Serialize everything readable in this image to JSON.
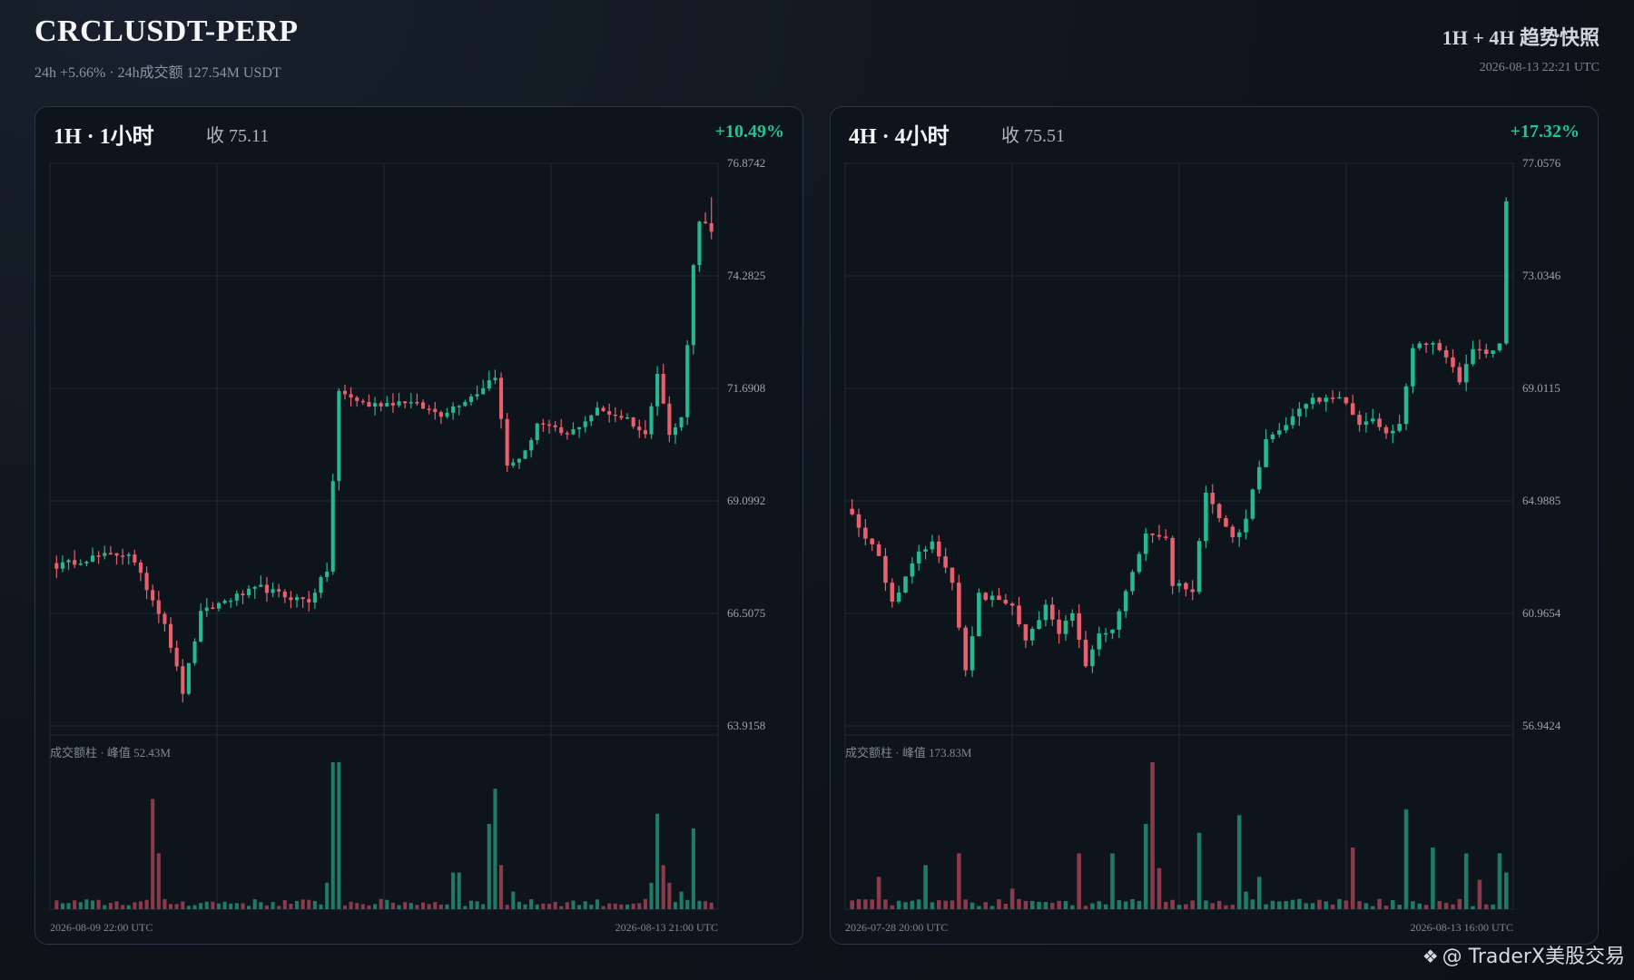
{
  "header": {
    "title": "CRCLUSDT-PERP",
    "subtitle": "24h +5.66% · 24h成交额 127.54M USDT",
    "right_title": "1H + 4H 趋势快照",
    "timestamp": "2026-08-13 22:21 UTC"
  },
  "watermark": {
    "icon": "diamond-logo-icon",
    "text": "@ TraderX美股交易"
  },
  "colors": {
    "up": "#26b88f",
    "down": "#e8606e",
    "up_vol": "#1f7a67",
    "down_vol": "#8a3a4a",
    "grid": "#1f2a35"
  },
  "chart_data": [
    {
      "type": "candlestick",
      "label": "1H · 1小时",
      "close_text": "收 75.11",
      "change": "+10.49%",
      "ylim": [
        63.9158,
        76.8742
      ],
      "y_ticks": [
        "76.8742",
        "74.2825",
        "71.6908",
        "69.0992",
        "66.5075",
        "63.9158"
      ],
      "x_start": "2026-08-09 22:00 UTC",
      "x_end": "2026-08-13 21:00 UTC",
      "volume_caption": "成交额柱 · 峰值 52.43M",
      "anchors": [
        [
          0,
          67.6
        ],
        [
          6,
          67.8
        ],
        [
          12,
          67.9
        ],
        [
          18,
          66.3
        ],
        [
          21,
          64.7
        ],
        [
          24,
          66.5
        ],
        [
          28,
          66.8
        ],
        [
          34,
          67.1
        ],
        [
          38,
          66.9
        ],
        [
          42,
          66.8
        ],
        [
          45,
          67.5
        ],
        [
          47,
          71.6
        ],
        [
          52,
          71.3
        ],
        [
          58,
          71.4
        ],
        [
          64,
          71.1
        ],
        [
          70,
          71.6
        ],
        [
          73,
          72.0
        ],
        [
          75,
          69.9
        ],
        [
          78,
          70.2
        ],
        [
          80,
          70.9
        ],
        [
          85,
          70.6
        ],
        [
          90,
          71.2
        ],
        [
          95,
          71.0
        ],
        [
          98,
          70.6
        ],
        [
          100,
          72.1
        ],
        [
          102,
          70.6
        ],
        [
          104,
          71.0
        ],
        [
          106,
          74.5
        ],
        [
          107,
          75.6
        ],
        [
          109,
          75.3
        ]
      ],
      "vol_spikes": [
        [
          16,
          0.75
        ],
        [
          17,
          0.38
        ],
        [
          45,
          0.18
        ],
        [
          46,
          1.0
        ],
        [
          47,
          1.0
        ],
        [
          66,
          0.25
        ],
        [
          67,
          0.25
        ],
        [
          72,
          0.58
        ],
        [
          73,
          0.82
        ],
        [
          74,
          0.3
        ],
        [
          76,
          0.12
        ],
        [
          99,
          0.18
        ],
        [
          100,
          0.65
        ],
        [
          101,
          0.3
        ],
        [
          102,
          0.18
        ],
        [
          104,
          0.12
        ],
        [
          106,
          0.55
        ]
      ]
    },
    {
      "type": "candlestick",
      "label": "4H · 4小时",
      "close_text": "收 75.51",
      "change": "+17.32%",
      "ylim": [
        56.9424,
        77.0576
      ],
      "y_ticks": [
        "77.0576",
        "73.0346",
        "69.0115",
        "64.9885",
        "60.9654",
        "56.9424"
      ],
      "x_start": "2026-07-28 20:00 UTC",
      "x_end": "2026-08-13 16:00 UTC",
      "volume_caption": "成交额柱 · 峰值 173.83M",
      "anchors": [
        [
          0,
          64.5
        ],
        [
          4,
          63.0
        ],
        [
          6,
          61.3
        ],
        [
          9,
          62.8
        ],
        [
          12,
          63.6
        ],
        [
          15,
          62.1
        ],
        [
          17,
          58.9
        ],
        [
          19,
          61.6
        ],
        [
          24,
          61.3
        ],
        [
          26,
          60.0
        ],
        [
          29,
          61.2
        ],
        [
          31,
          60.2
        ],
        [
          33,
          61.0
        ],
        [
          35,
          59.0
        ],
        [
          37,
          60.2
        ],
        [
          39,
          60.3
        ],
        [
          41,
          61.8
        ],
        [
          44,
          63.8
        ],
        [
          47,
          63.6
        ],
        [
          48,
          62.0
        ],
        [
          51,
          61.8
        ],
        [
          53,
          65.3
        ],
        [
          57,
          63.6
        ],
        [
          59,
          64.3
        ],
        [
          62,
          67.3
        ],
        [
          64,
          67.6
        ],
        [
          69,
          68.6
        ],
        [
          73,
          68.8
        ],
        [
          76,
          67.8
        ],
        [
          78,
          68.0
        ],
        [
          80,
          67.4
        ],
        [
          82,
          67.8
        ],
        [
          84,
          70.5
        ],
        [
          87,
          70.7
        ],
        [
          89,
          70.2
        ],
        [
          91,
          69.3
        ],
        [
          93,
          70.5
        ],
        [
          95,
          70.2
        ],
        [
          97,
          70.7
        ],
        [
          98,
          75.7
        ]
      ],
      "vol_spikes": [
        [
          4,
          0.22
        ],
        [
          11,
          0.3
        ],
        [
          16,
          0.38
        ],
        [
          24,
          0.14
        ],
        [
          34,
          0.38
        ],
        [
          39,
          0.38
        ],
        [
          44,
          0.58
        ],
        [
          45,
          1.0
        ],
        [
          46,
          0.28
        ],
        [
          52,
          0.52
        ],
        [
          58,
          0.64
        ],
        [
          59,
          0.12
        ],
        [
          61,
          0.22
        ],
        [
          75,
          0.42
        ],
        [
          83,
          0.68
        ],
        [
          87,
          0.42
        ],
        [
          92,
          0.38
        ],
        [
          94,
          0.2
        ],
        [
          97,
          0.38
        ],
        [
          98,
          0.25
        ]
      ]
    }
  ]
}
